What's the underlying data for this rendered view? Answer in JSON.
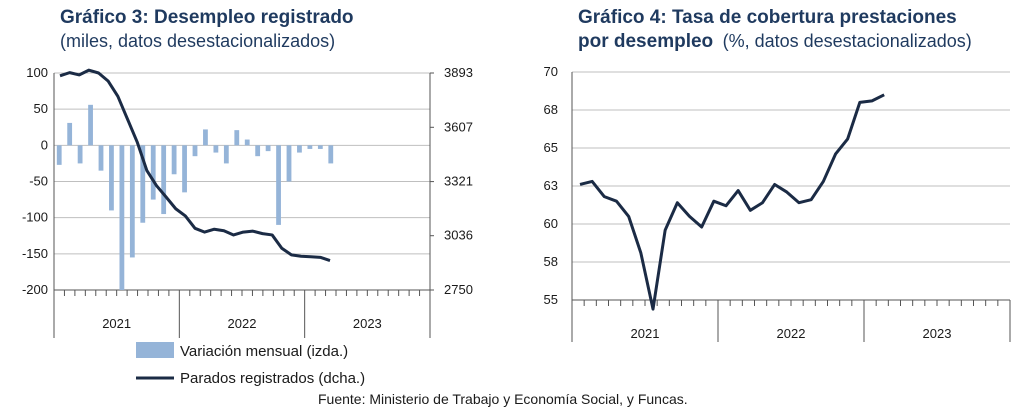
{
  "colors": {
    "bar": "#95b4d8",
    "line": "#1b2b45",
    "grid": "#bfbfbf",
    "title": "#1f3a5f"
  },
  "source": "Fuente: Ministerio de Trabajo y Economía Social, y Funcas.",
  "chart_data": [
    {
      "type": "bar+line",
      "title_bold": "Gráfico 3: Desempleo registrado",
      "subtitle": "(miles, datos desestacionalizados)",
      "y_left_ticks": [
        "100",
        "50",
        "0",
        "-50",
        "-100",
        "-150",
        "-200"
      ],
      "ylim_left": [
        -200,
        100
      ],
      "y_right_ticks": [
        "3893",
        "3607",
        "3321",
        "3036",
        "2750"
      ],
      "ylim_right": [
        2750,
        3893
      ],
      "year_labels": [
        "2021",
        "2022",
        "2023"
      ],
      "grid": true,
      "legend": {
        "placement": "bottom"
      },
      "series": [
        {
          "name": "Variación mensual (izda.)",
          "type": "bar",
          "axis": "left",
          "values": [
            -27,
            31,
            -25,
            56,
            -35,
            -90,
            -200,
            -155,
            -107,
            -75,
            -95,
            -40,
            -65,
            -15,
            22,
            -10,
            -25,
            21,
            8,
            -15,
            -8,
            -110,
            -50,
            -10,
            -5,
            -5,
            -25
          ]
        },
        {
          "name": "Parados registrados (dcha.)",
          "type": "line",
          "axis": "right",
          "values": [
            3878,
            3895,
            3883,
            3908,
            3893,
            3850,
            3770,
            3650,
            3530,
            3380,
            3300,
            3240,
            3178,
            3140,
            3075,
            3055,
            3070,
            3062,
            3040,
            3055,
            3060,
            3047,
            3040,
            2970,
            2935,
            2928,
            2925,
            2922,
            2905
          ]
        }
      ]
    },
    {
      "type": "line",
      "title_bold": "Gráfico 4: Tasa de cobertura prestaciones",
      "title_bold_2": "por desempleo",
      "title_rest": "(%, datos desestacionalizados)",
      "y_ticks": [
        "70",
        "68",
        "65",
        "63",
        "60",
        "58",
        "55"
      ],
      "ylim": [
        55,
        70
      ],
      "year_labels": [
        "2021",
        "2022",
        "2023"
      ],
      "grid": true,
      "series": [
        {
          "name": "Tasa de cobertura",
          "values": [
            62.6,
            62.8,
            61.8,
            61.5,
            60.5,
            58.1,
            54.4,
            59.6,
            61.4,
            60.5,
            59.8,
            61.5,
            61.2,
            62.2,
            60.9,
            61.4,
            62.6,
            62.1,
            61.4,
            61.6,
            62.8,
            64.6,
            65.6,
            68.0,
            68.1,
            68.5
          ]
        }
      ]
    }
  ]
}
